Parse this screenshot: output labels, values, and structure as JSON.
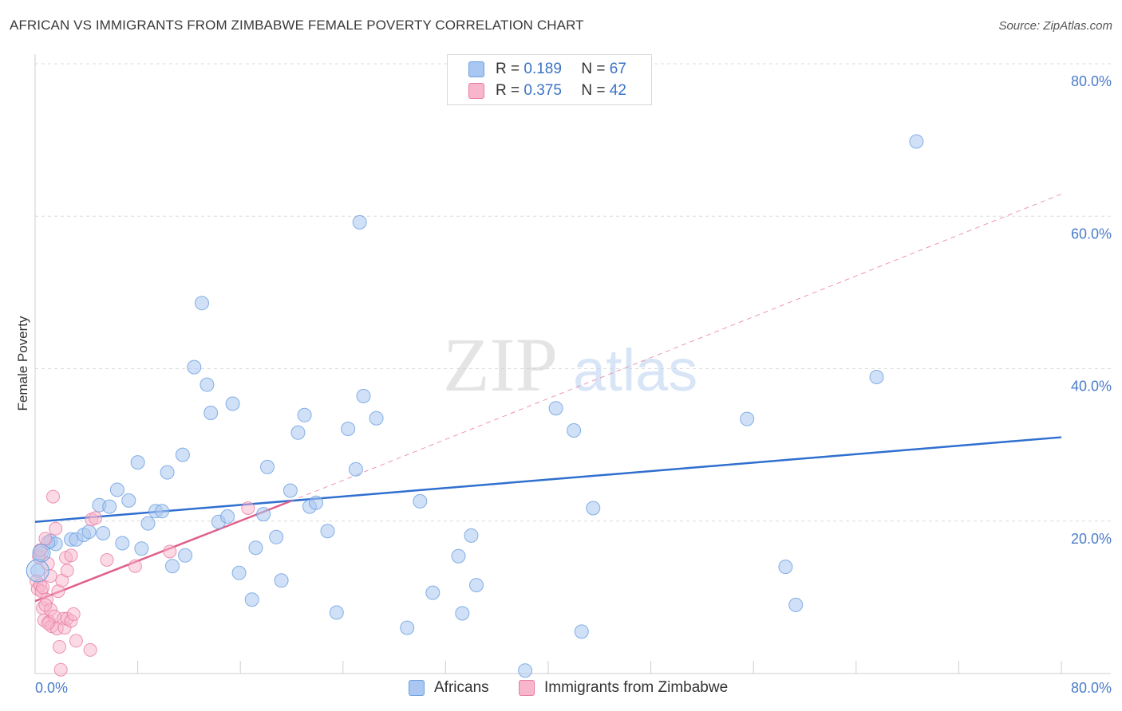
{
  "header": {
    "title": "AFRICAN VS IMMIGRANTS FROM ZIMBABWE FEMALE POVERTY CORRELATION CHART",
    "source": "Source: ZipAtlas.com"
  },
  "watermark": {
    "zip": "ZIP",
    "atlas": "atlas"
  },
  "legend": {
    "rows": [
      {
        "r_label": "R =",
        "r_value": "0.189",
        "n_label": "N =",
        "n_value": "67",
        "color": "#a9c7f0"
      },
      {
        "r_label": "R =",
        "r_value": "0.375",
        "n_label": "N =",
        "n_value": "42",
        "color": "#f7b6cb"
      }
    ]
  },
  "bottom_legend": {
    "items": [
      {
        "label": "Africans",
        "color": "#a9c7f0"
      },
      {
        "label": "Immigrants from Zimbabwe",
        "color": "#f7b6cb"
      }
    ]
  },
  "chart_data": {
    "type": "scatter",
    "title": "AFRICAN VS IMMIGRANTS FROM ZIMBABWE FEMALE POVERTY CORRELATION CHART",
    "xlabel": "",
    "ylabel": "Female Poverty",
    "xlim": [
      0,
      80
    ],
    "ylim": [
      0,
      80
    ],
    "x_tick_labels": [
      "0.0%",
      "80.0%"
    ],
    "y_ticks": [
      20,
      40,
      60,
      80
    ],
    "y_tick_labels": [
      "20.0%",
      "40.0%",
      "60.0%",
      "80.0%"
    ],
    "grid": true,
    "series": [
      {
        "name": "Africans",
        "color": "#6a9fe0",
        "fill": "#a9c7f0",
        "points": [
          [
            0.2,
            13.5
          ],
          [
            0.5,
            15.8
          ],
          [
            1.2,
            17.4
          ],
          [
            1.6,
            17.0
          ],
          [
            2.8,
            17.6
          ],
          [
            3.2,
            17.6
          ],
          [
            3.8,
            18.2
          ],
          [
            4.2,
            18.6
          ],
          [
            5.0,
            22.1
          ],
          [
            5.3,
            18.4
          ],
          [
            5.8,
            21.9
          ],
          [
            6.4,
            24.1
          ],
          [
            6.8,
            17.1
          ],
          [
            7.3,
            22.7
          ],
          [
            8.0,
            27.7
          ],
          [
            8.3,
            16.4
          ],
          [
            8.8,
            19.7
          ],
          [
            9.4,
            21.3
          ],
          [
            9.9,
            21.3
          ],
          [
            10.3,
            26.4
          ],
          [
            10.7,
            14.1
          ],
          [
            11.5,
            28.7
          ],
          [
            11.7,
            15.5
          ],
          [
            12.4,
            40.2
          ],
          [
            13.0,
            48.6
          ],
          [
            13.4,
            37.9
          ],
          [
            13.7,
            34.2
          ],
          [
            14.3,
            19.9
          ],
          [
            15.0,
            20.6
          ],
          [
            15.4,
            35.4
          ],
          [
            15.9,
            13.2
          ],
          [
            16.9,
            9.7
          ],
          [
            17.2,
            16.5
          ],
          [
            17.8,
            20.9
          ],
          [
            18.1,
            27.1
          ],
          [
            18.8,
            17.9
          ],
          [
            19.2,
            12.2
          ],
          [
            19.9,
            24.0
          ],
          [
            20.5,
            31.6
          ],
          [
            21.0,
            33.9
          ],
          [
            21.4,
            21.9
          ],
          [
            21.9,
            22.4
          ],
          [
            22.8,
            18.7
          ],
          [
            23.5,
            8.0
          ],
          [
            24.4,
            32.1
          ],
          [
            25.0,
            26.8
          ],
          [
            25.3,
            59.2
          ],
          [
            25.6,
            36.4
          ],
          [
            26.6,
            33.5
          ],
          [
            29.0,
            6.0
          ],
          [
            30.0,
            22.6
          ],
          [
            31.0,
            10.6
          ],
          [
            33.0,
            15.4
          ],
          [
            33.3,
            7.9
          ],
          [
            34.0,
            18.1
          ],
          [
            34.4,
            11.6
          ],
          [
            38.2,
            0.4
          ],
          [
            40.6,
            34.8
          ],
          [
            42.0,
            31.9
          ],
          [
            42.6,
            5.5
          ],
          [
            43.5,
            21.7
          ],
          [
            55.5,
            33.4
          ],
          [
            58.5,
            14.0
          ],
          [
            59.3,
            9.0
          ],
          [
            65.6,
            38.9
          ],
          [
            68.7,
            69.8
          ],
          [
            1.0,
            17.2
          ]
        ],
        "trend": {
          "x": [
            0,
            80
          ],
          "y": [
            19.9,
            31.0
          ],
          "style": "solid"
        }
      },
      {
        "name": "Immigrants from Zimbabwe",
        "color": "#e87aa0",
        "fill": "#f7b6cb",
        "points": [
          [
            0.1,
            12.1
          ],
          [
            0.2,
            11.1
          ],
          [
            0.3,
            15.3
          ],
          [
            0.4,
            11.6
          ],
          [
            0.5,
            10.8
          ],
          [
            0.6,
            8.6
          ],
          [
            0.7,
            7.0
          ],
          [
            0.8,
            17.7
          ],
          [
            0.9,
            9.7
          ],
          [
            1.0,
            14.4
          ],
          [
            1.1,
            6.8
          ],
          [
            1.2,
            8.4
          ],
          [
            1.3,
            6.2
          ],
          [
            1.4,
            23.2
          ],
          [
            1.5,
            7.5
          ],
          [
            1.6,
            19.0
          ],
          [
            1.7,
            5.9
          ],
          [
            1.8,
            10.8
          ],
          [
            1.9,
            3.5
          ],
          [
            2.0,
            0.5
          ],
          [
            2.1,
            12.2
          ],
          [
            2.2,
            7.2
          ],
          [
            2.3,
            6.0
          ],
          [
            2.4,
            15.2
          ],
          [
            2.5,
            7.2
          ],
          [
            2.8,
            6.9
          ],
          [
            3.0,
            7.8
          ],
          [
            2.5,
            13.5
          ],
          [
            3.2,
            4.3
          ],
          [
            4.3,
            3.1
          ],
          [
            4.4,
            20.2
          ],
          [
            4.7,
            20.4
          ],
          [
            5.6,
            14.9
          ],
          [
            7.8,
            14.1
          ],
          [
            10.5,
            16.0
          ],
          [
            16.6,
            21.7
          ],
          [
            0.4,
            16.2
          ],
          [
            0.6,
            11.3
          ],
          [
            0.8,
            9.0
          ],
          [
            1.0,
            6.6
          ],
          [
            1.2,
            12.8
          ],
          [
            2.8,
            15.5
          ]
        ],
        "trend": {
          "x": [
            0,
            19.9
          ],
          "y": [
            9.5,
            22.6
          ],
          "style": "solid"
        },
        "trend_extended": {
          "x": [
            19.9,
            80
          ],
          "y": [
            22.6,
            62.9
          ],
          "style": "dashed"
        }
      }
    ]
  }
}
